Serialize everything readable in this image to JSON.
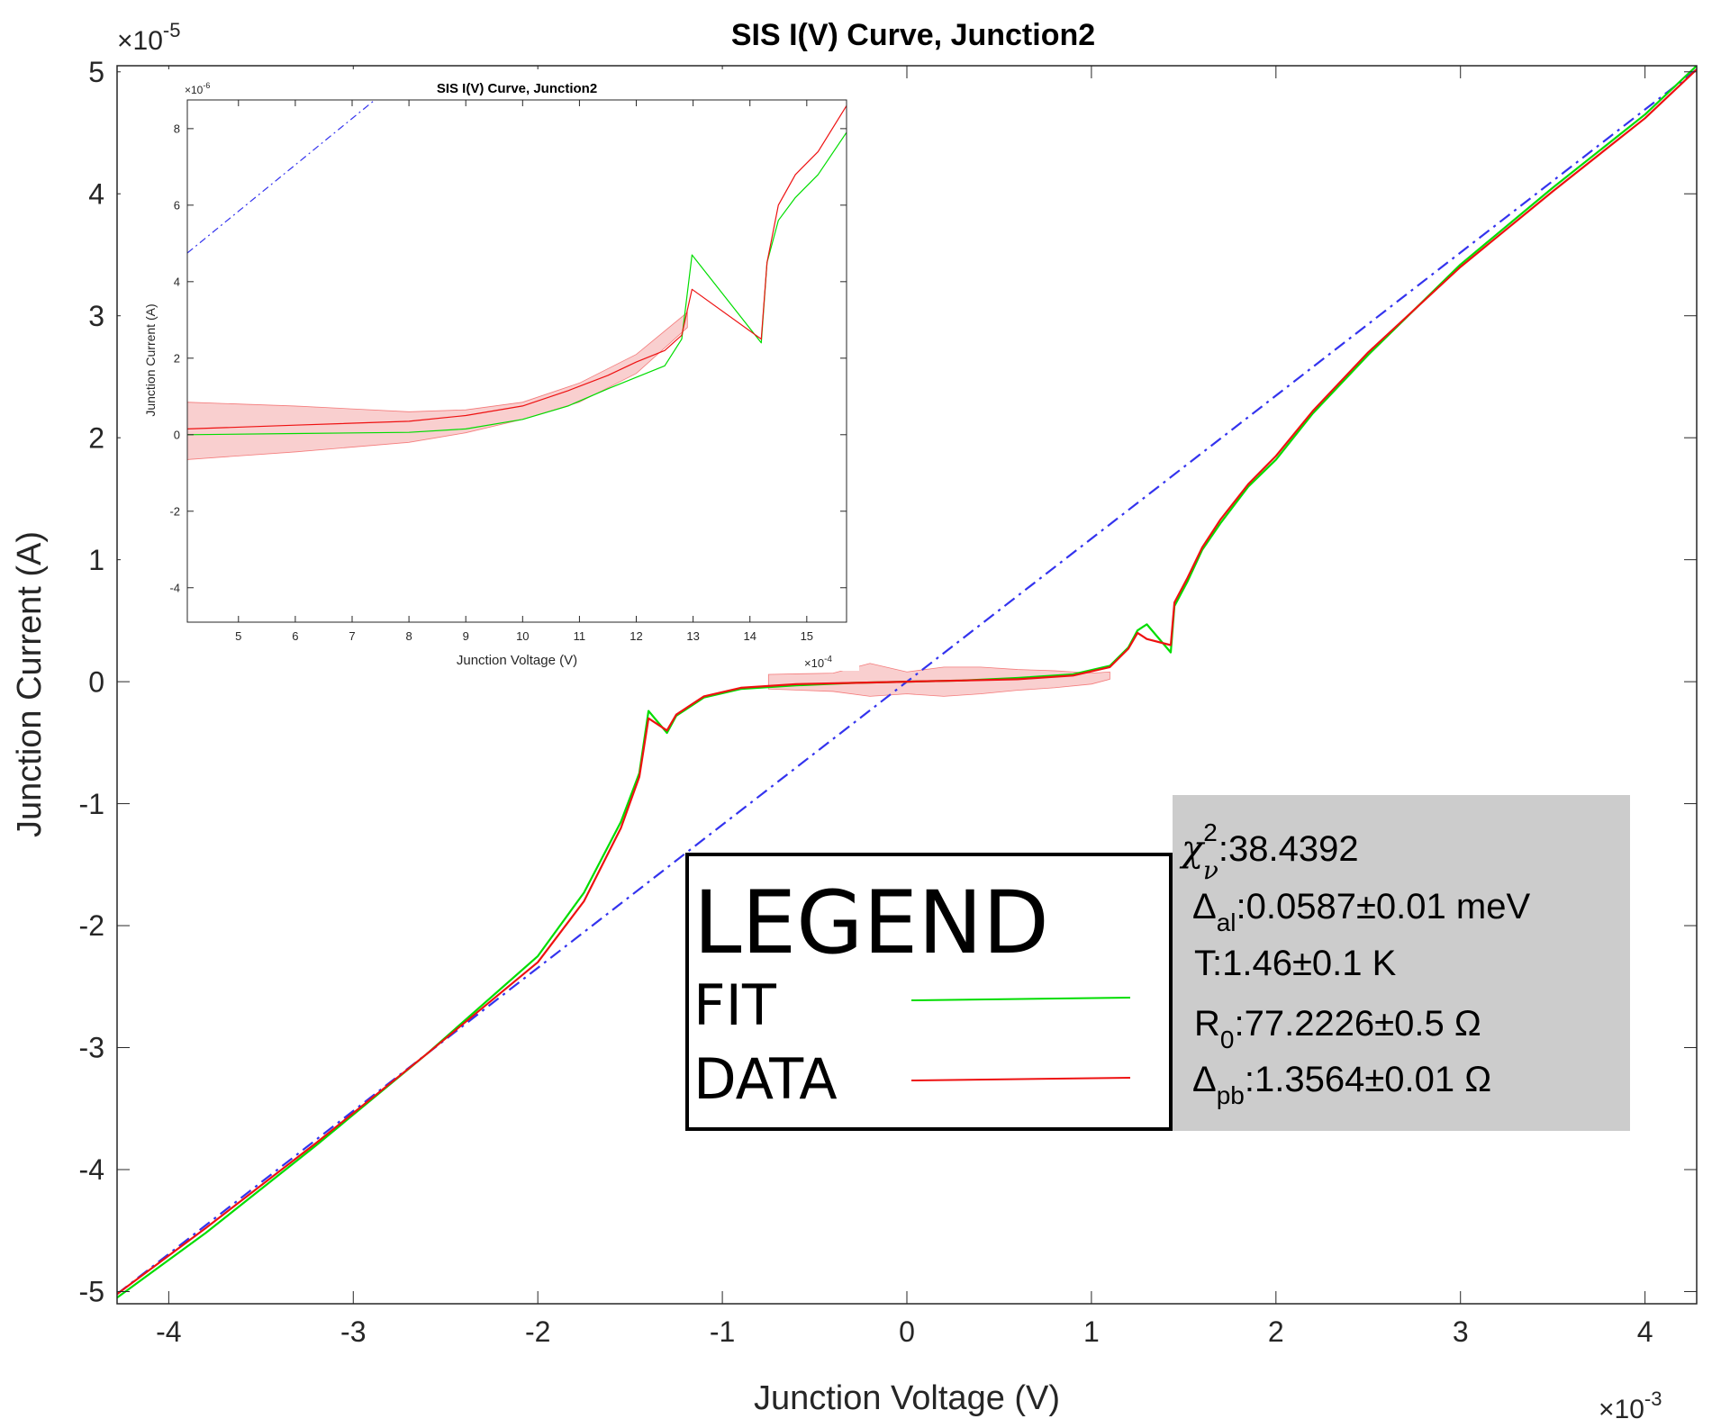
{
  "chart_data": [
    {
      "type": "line",
      "title": "SIS I(V) Curve, Junction2",
      "xlabel": "Junction Voltage (V)",
      "ylabel": "Junction Current (A)",
      "x_exponent_label": "×10",
      "x_exponent": "-3",
      "y_exponent_label": "×10",
      "y_exponent": "-5",
      "xlim": [
        -4.28,
        4.28
      ],
      "ylim": [
        -5.1,
        5.05
      ],
      "xticks": [
        "-4",
        "-3",
        "-2",
        "-1",
        "0",
        "1",
        "2",
        "3",
        "4"
      ],
      "yticks": [
        "-5",
        "-4",
        "-3",
        "-2",
        "-1",
        "0",
        "1",
        "2",
        "3",
        "4",
        "5"
      ],
      "grid": false,
      "colors": {
        "fit": "#00dd00",
        "data": "#ee1111",
        "normal_resistance": "#3333ee",
        "band": "#f4a8a8"
      },
      "series": [
        {
          "name": "FIT",
          "x": [
            -4.28,
            -3.8,
            -3.2,
            -2.6,
            -2.0,
            -1.75,
            -1.55,
            -1.45,
            -1.4,
            -1.3,
            -1.25,
            -1.1,
            -0.9,
            -0.6,
            -0.3,
            0.0,
            0.3,
            0.6,
            0.9,
            1.1,
            1.2,
            1.25,
            1.3,
            1.43,
            1.45,
            1.52,
            1.6,
            1.7,
            1.85,
            2.0,
            2.2,
            2.5,
            3.0,
            3.5,
            4.0,
            4.28
          ],
          "y": [
            -5.05,
            -4.52,
            -3.8,
            -3.05,
            -2.25,
            -1.73,
            -1.15,
            -0.75,
            -0.24,
            -0.42,
            -0.28,
            -0.13,
            -0.06,
            -0.03,
            -0.01,
            0.0,
            0.01,
            0.03,
            0.06,
            0.13,
            0.28,
            0.42,
            0.47,
            0.24,
            0.62,
            0.82,
            1.08,
            1.3,
            1.6,
            1.82,
            2.2,
            2.68,
            3.42,
            4.05,
            4.65,
            5.05
          ]
        },
        {
          "name": "DATA",
          "x": [
            -4.28,
            -3.8,
            -3.2,
            -2.6,
            -2.0,
            -1.75,
            -1.55,
            -1.45,
            -1.4,
            -1.3,
            -1.25,
            -1.1,
            -0.9,
            -0.6,
            -0.3,
            0.0,
            0.3,
            0.6,
            0.9,
            1.1,
            1.2,
            1.25,
            1.3,
            1.43,
            1.45,
            1.52,
            1.6,
            1.7,
            1.85,
            2.0,
            2.2,
            2.5,
            3.0,
            3.5,
            4.0,
            4.28
          ],
          "y": [
            -5.02,
            -4.48,
            -3.78,
            -3.05,
            -2.3,
            -1.8,
            -1.2,
            -0.78,
            -0.3,
            -0.4,
            -0.27,
            -0.12,
            -0.05,
            -0.02,
            -0.01,
            0.0,
            0.01,
            0.02,
            0.05,
            0.12,
            0.27,
            0.4,
            0.35,
            0.3,
            0.65,
            0.85,
            1.1,
            1.33,
            1.62,
            1.85,
            2.22,
            2.7,
            3.4,
            4.02,
            4.62,
            5.02
          ]
        },
        {
          "name": "",
          "style": "dash-dot",
          "x": [
            -4.28,
            4.28
          ],
          "y": [
            -5.02,
            5.02
          ]
        }
      ],
      "band": {
        "x": [
          -0.75,
          -0.4,
          -0.2,
          0.0,
          0.2,
          0.4,
          0.6,
          0.8,
          1.0,
          1.1
        ],
        "upper": [
          0.06,
          0.07,
          0.15,
          0.08,
          0.12,
          0.12,
          0.1,
          0.09,
          0.07,
          0.08
        ],
        "lower": [
          -0.06,
          -0.08,
          -0.12,
          -0.1,
          -0.12,
          -0.1,
          -0.07,
          -0.05,
          -0.02,
          0.02
        ]
      }
    },
    {
      "type": "line",
      "title": "SIS I(V) Curve, Junction2",
      "xlabel": "Junction Voltage (V)",
      "ylabel": "Junction Current (A)",
      "x_exponent_label": "×10",
      "x_exponent": "-4",
      "y_exponent_label": "×10",
      "y_exponent": "-6",
      "xlim": [
        4.1,
        15.7
      ],
      "ylim": [
        -4.9,
        8.75
      ],
      "xticks": [
        "5",
        "6",
        "7",
        "8",
        "9",
        "10",
        "11",
        "12",
        "13",
        "14",
        "15"
      ],
      "yticks": [
        "-4",
        "-2",
        "0",
        "2",
        "4",
        "6",
        "8"
      ],
      "grid": false,
      "series": [
        {
          "name": "FIT",
          "x": [
            4.1,
            6.0,
            8.0,
            9.0,
            10.0,
            10.8,
            11.5,
            12.0,
            12.5,
            12.8,
            12.98,
            14.2,
            14.3,
            14.5,
            14.8,
            15.2,
            15.7
          ],
          "y": [
            0.0,
            0.03,
            0.06,
            0.15,
            0.4,
            0.75,
            1.2,
            1.5,
            1.8,
            2.5,
            4.7,
            2.4,
            4.5,
            5.6,
            6.2,
            6.8,
            7.9
          ]
        },
        {
          "name": "DATA",
          "x": [
            4.1,
            6.0,
            8.0,
            9.0,
            10.0,
            10.8,
            11.5,
            12.0,
            12.5,
            12.8,
            12.98,
            14.2,
            14.3,
            14.5,
            14.8,
            15.2,
            15.7
          ],
          "y": [
            0.15,
            0.25,
            0.35,
            0.5,
            0.75,
            1.15,
            1.55,
            1.9,
            2.2,
            2.6,
            3.8,
            2.5,
            4.5,
            6.0,
            6.8,
            7.4,
            8.6
          ]
        },
        {
          "name": "",
          "style": "dash-dot",
          "x": [
            4.1,
            7.4
          ],
          "y": [
            4.75,
            8.75
          ]
        }
      ],
      "band": {
        "x": [
          4.1,
          6.0,
          8.0,
          9.0,
          10.0,
          11.0,
          12.0,
          12.9
        ],
        "upper": [
          0.85,
          0.75,
          0.6,
          0.65,
          0.85,
          1.35,
          2.1,
          3.2
        ],
        "lower": [
          -0.65,
          -0.45,
          -0.2,
          0.05,
          0.4,
          0.85,
          1.6,
          2.8
        ]
      }
    }
  ],
  "legend": {
    "heading": "LEGEND",
    "items": [
      {
        "label": "FIT",
        "color": "#00dd00"
      },
      {
        "label": "DATA",
        "color": "#ee1111"
      }
    ]
  },
  "stats": {
    "chi_symbol": "χ",
    "chi_sup": "2",
    "chi_sub": "ν",
    "chi_value": ":38.4392",
    "delta_al_symbol": "Δ",
    "delta_al_sub": "al",
    "delta_al_value": ":0.0587±0.01 meV",
    "temperature": "T:1.46±0.1 K",
    "r0_symbol": "R",
    "r0_sub": "0",
    "r0_value": ":77.2226±0.5 Ω",
    "delta_pb_symbol": "Δ",
    "delta_pb_sub": "pb",
    "delta_pb_value": ":1.3564±0.01 Ω"
  }
}
